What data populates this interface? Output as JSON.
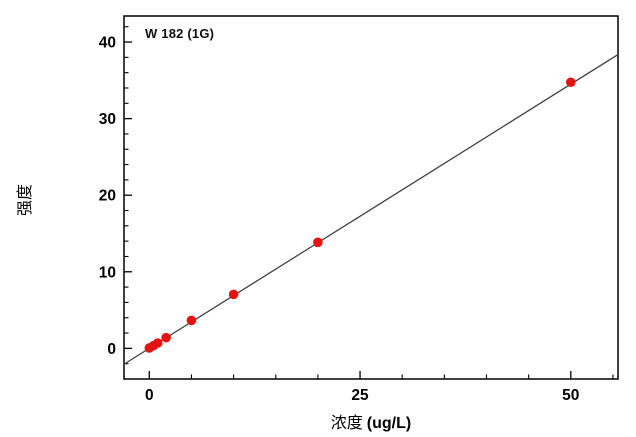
{
  "chart_data": {
    "type": "scatter",
    "annotation": "W 182 (1G)",
    "xlabel": "浓度 (ug/L)",
    "xlabel_cjk": "浓度 ",
    "xlabel_latin": "(ug/L)",
    "ylabel": "强度",
    "xlim": [
      -3,
      55.6
    ],
    "ylim": [
      -4,
      43.4
    ],
    "x_major_ticks": [
      0,
      25,
      50
    ],
    "x_minor_ticks": [
      5,
      10,
      15,
      20,
      30,
      35,
      40,
      45,
      55
    ],
    "y_major_ticks": [
      0,
      10,
      20,
      30,
      40
    ],
    "y_minor_ticks": [
      -2,
      2,
      4,
      6,
      8,
      12,
      14,
      16,
      18,
      22,
      24,
      26,
      28,
      32,
      34,
      36,
      38,
      42
    ],
    "grid": "off",
    "legend": "none",
    "points": [
      {
        "x": 0,
        "y": 0.05
      },
      {
        "x": 0.5,
        "y": 0.35
      },
      {
        "x": 1,
        "y": 0.7
      },
      {
        "x": 2,
        "y": 1.4
      },
      {
        "x": 5,
        "y": 3.65
      },
      {
        "x": 10,
        "y": 7.05
      },
      {
        "x": 20,
        "y": 13.85
      },
      {
        "x": 50,
        "y": 34.75
      }
    ],
    "fit_line": {
      "slope": 0.69,
      "intercept": 0.0
    },
    "marker": {
      "shape": "circle",
      "radius": 4.8
    },
    "colors": {
      "point": "#e51212",
      "line": "#3a3a3a",
      "axis": "#000000",
      "text": "#000000",
      "background": "#ffffff"
    }
  }
}
